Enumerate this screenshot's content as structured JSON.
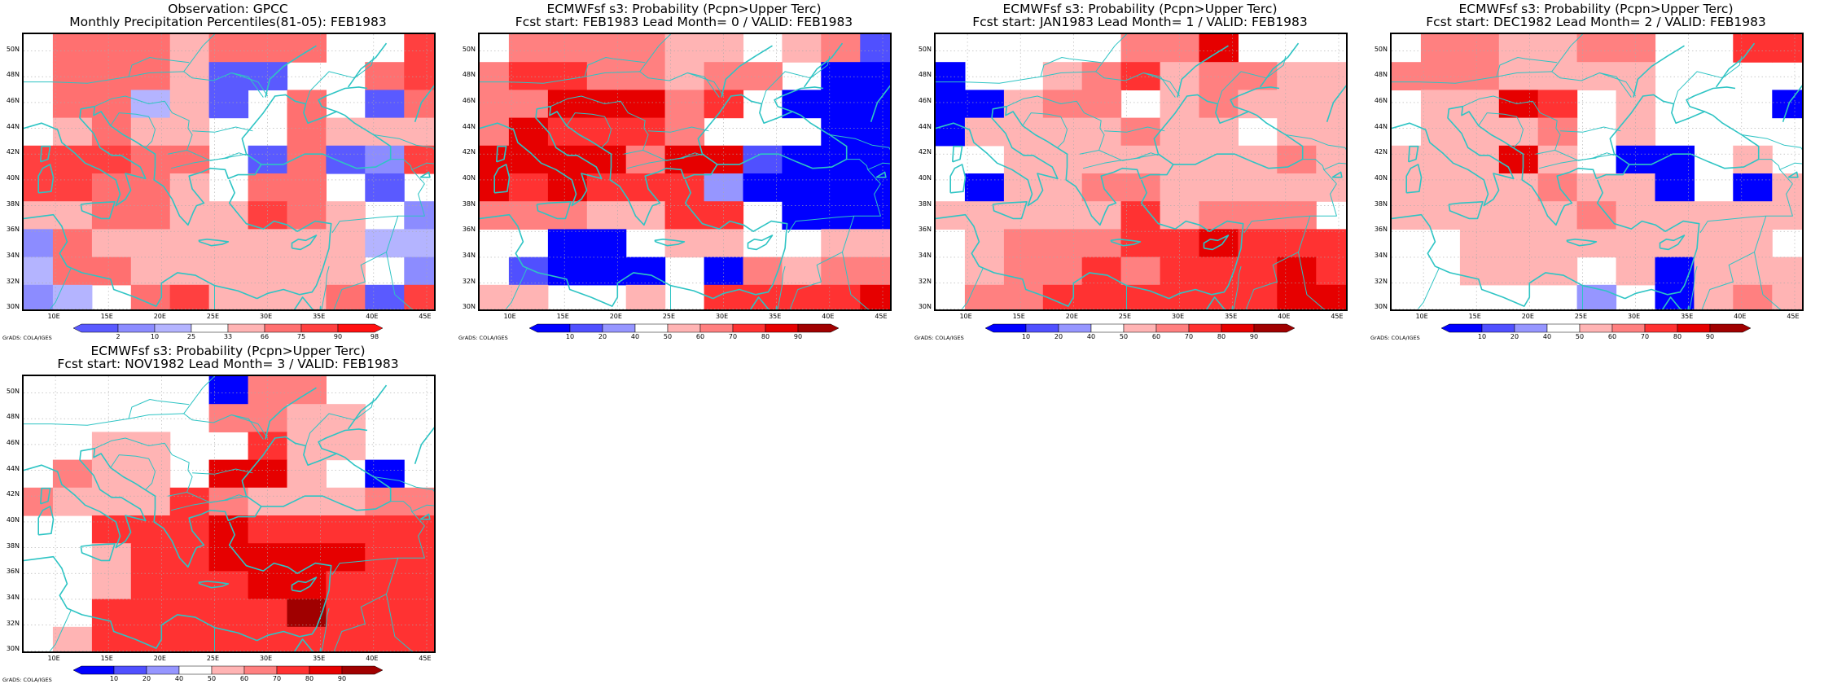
{
  "palettes": {
    "percentile": [
      "#5a5aff",
      "#8c8cff",
      "#b4b4ff",
      "#ffffff",
      "#ffb4b4",
      "#ff7070",
      "#ff4040",
      "#ff1010"
    ],
    "probability": [
      "#0000ff",
      "#5050ff",
      "#9696ff",
      "#ffffff",
      "#ffb4b4",
      "#ff8080",
      "#ff3232",
      "#e60000",
      "#a00000"
    ]
  },
  "lat_labels": [
    "50N",
    "48N",
    "46N",
    "44N",
    "42N",
    "40N",
    "38N",
    "36N",
    "34N",
    "32N",
    "30N"
  ],
  "lon_labels": [
    "10E",
    "15E",
    "20E",
    "25E",
    "30E",
    "35E",
    "40E",
    "45E"
  ],
  "panels": [
    {
      "id": "obs",
      "title_line1": "Observation: GPCC",
      "title_line2": "Monthly Precipitation Percentiles(81-05): FEB1983",
      "palette": "percentile",
      "colorbar_labels": [
        "2",
        "10",
        "25",
        "33",
        "66",
        "75",
        "90",
        "98"
      ],
      "credit": "GrADS: COLA/IGES",
      "grid": [
        "35554555336",
        "35554003356",
        "35524035305",
        "34544335444",
        "66655305016",
        "66554355303",
        "44554465431",
        "15444444422",
        "25544444431",
        "12356444506"
      ]
    },
    {
      "id": "lead0",
      "title_line1": "ECMWFsf s3: Probability (Pcpn>Upper Terc)",
      "title_line2": "Fcst start: FEB1983  Lead Month= 0 / VALID: FEB1983",
      "palette": "probability",
      "colorbar_labels": [
        "10",
        "20",
        "40",
        "50",
        "60",
        "70",
        "80",
        "90"
      ],
      "credit": "GrADS: COLA/IGES",
      "grid": [
        "35555443451",
        "56655455300",
        "55777563000",
        "57666533300",
        "77775771000",
        "76766620000",
        "55544663000",
        "33003443344",
        "31000305455",
        "44334366667"
      ]
    },
    {
      "id": "lead1",
      "title_line1": "ECMWFsf s3: Probability (Pcpn>Upper Terc)",
      "title_line2": "Fcst start: JAN1983  Lead Month= 1 / VALID: FEB1983",
      "palette": "probability",
      "colorbar_labels": [
        "10",
        "20",
        "40",
        "50",
        "60",
        "70",
        "80",
        "90"
      ],
      "credit": "GrADS: COLA/IGES",
      "grid": [
        "33333557333",
        "03345645544",
        "00455345444",
        "04444544344",
        "33444444454",
        "30445544444",
        "44444645553",
        "34555667666",
        "34556566676",
        "35566666677"
      ]
    },
    {
      "id": "lead2",
      "title_line1": "ECMWFsf s3: Probability (Pcpn>Upper Terc)",
      "title_line2": "Fcst start: DEC1982  Lead Month= 2 / VALID: FEB1983",
      "palette": "probability",
      "colorbar_labels": [
        "10",
        "20",
        "40",
        "50",
        "60",
        "70",
        "80",
        "90"
      ],
      "credit": "GrADS: COLA/IGES",
      "grid": [
        "35544553366",
        "55544443333",
        "34476343330",
        "34445343333",
        "44474300343",
        "44445440304",
        "44444544444",
        "33444444443",
        "33444340444",
        "33333230454"
      ]
    },
    {
      "id": "lead3",
      "title_line1": "ECMWFsf s3: Probability (Pcpn>Upper Terc)",
      "title_line2": "Fcst start: NOV1982  Lead Month= 3 / VALID: FEB1983",
      "palette": "probability",
      "colorbar_labels": [
        "10",
        "20",
        "40",
        "50",
        "60",
        "70",
        "80",
        "90"
      ],
      "credit": "GrADS: COLA/IGES",
      "grid": [
        "33333055333",
        "33333554433",
        "33443364433",
        "35443774303",
        "54446544455",
        "33666766666",
        "33466777766",
        "33466677666",
        "33666668666",
        "34666666666"
      ]
    }
  ]
}
